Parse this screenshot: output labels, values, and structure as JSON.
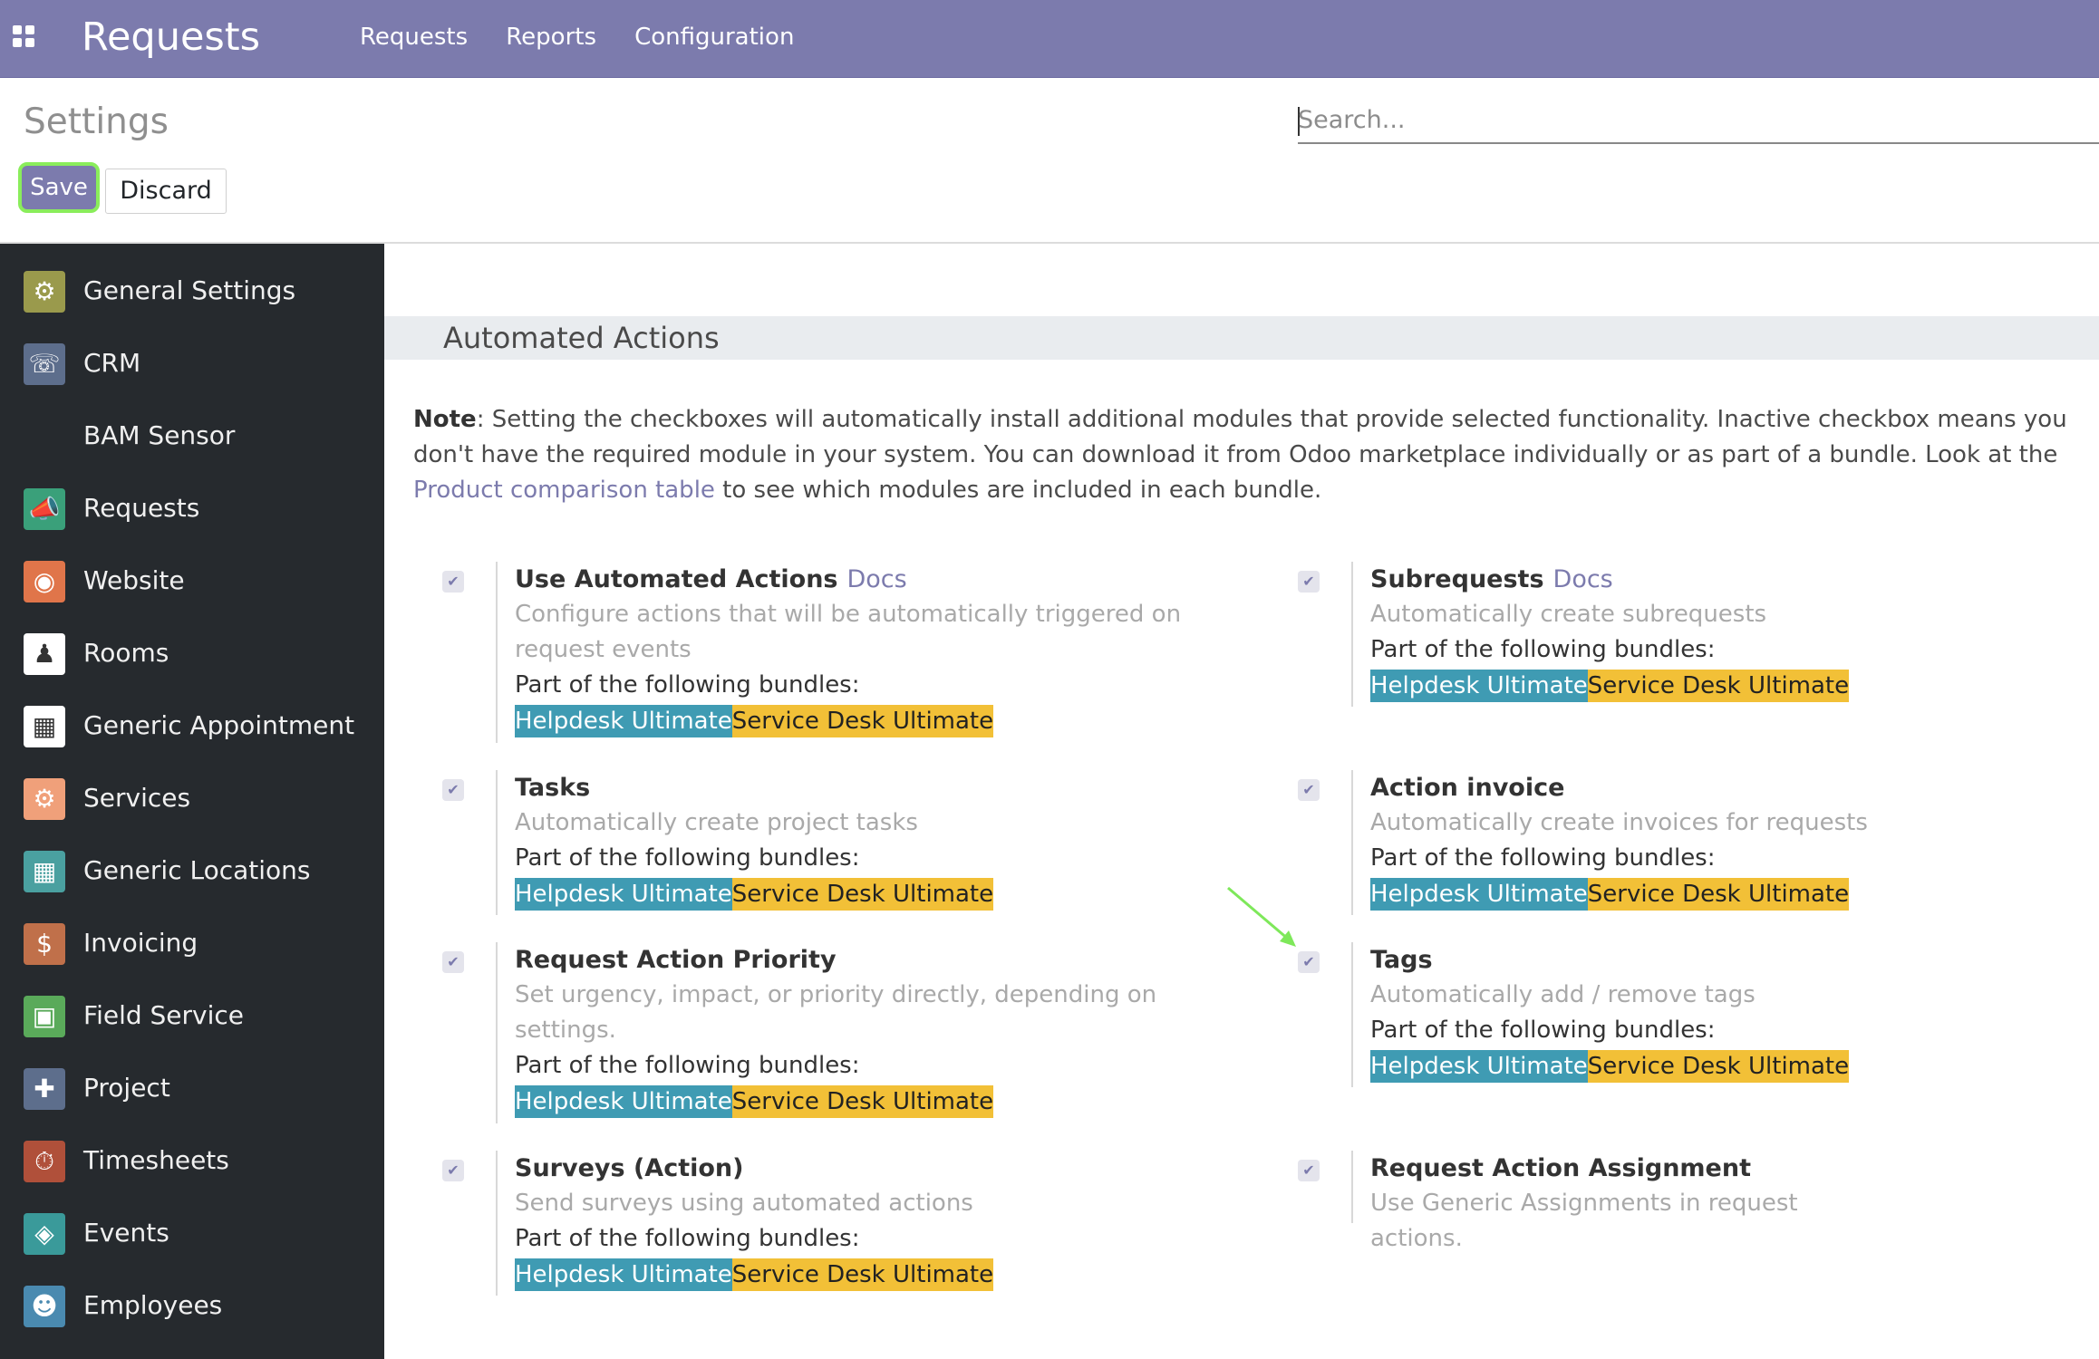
{
  "navbar": {
    "app_title": "Requests",
    "menu": [
      "Requests",
      "Reports",
      "Configuration"
    ],
    "color": "#7c7bad"
  },
  "control": {
    "breadcrumb": "Settings",
    "save_label": "Save",
    "discard_label": "Discard",
    "search_placeholder": "Search..."
  },
  "sidebar": {
    "items": [
      {
        "label": "General Settings",
        "icon": "gear-icon",
        "color": "#9a9a4c"
      },
      {
        "label": "CRM",
        "icon": "handshake-icon",
        "color": "#5d6e8c"
      },
      {
        "label": "BAM Sensor",
        "icon": "",
        "color": ""
      },
      {
        "label": "Requests",
        "icon": "megaphone-icon",
        "color": "#3aa07a"
      },
      {
        "label": "Website",
        "icon": "globe-icon",
        "color": "#e0754a"
      },
      {
        "label": "Rooms",
        "icon": "rooms-icon",
        "color": "#ffffff"
      },
      {
        "label": "Generic Appointment",
        "icon": "appointment-icon",
        "color": "#ffffff"
      },
      {
        "label": "Services",
        "icon": "services-icon",
        "color": "#f0a07a"
      },
      {
        "label": "Generic Locations",
        "icon": "locations-icon",
        "color": "#4aa0a0"
      },
      {
        "label": "Invoicing",
        "icon": "invoice-icon",
        "color": "#c0704a"
      },
      {
        "label": "Field Service",
        "icon": "field-service-icon",
        "color": "#5aaa5a"
      },
      {
        "label": "Project",
        "icon": "puzzle-icon",
        "color": "#5d6e8c"
      },
      {
        "label": "Timesheets",
        "icon": "stopwatch-icon",
        "color": "#b0503a"
      },
      {
        "label": "Events",
        "icon": "ticket-icon",
        "color": "#3a9a9a"
      },
      {
        "label": "Employees",
        "icon": "people-icon",
        "color": "#4a8ab0"
      }
    ]
  },
  "main": {
    "section_title": "Automated Actions",
    "note_bold": "Note",
    "note_text": ": Setting the checkboxes will automatically install additional modules that provide selected functionality. Inactive checkbox means you don't have the required module in your system. You can download it from Odoo marketplace individually or as part of a bundle. Look at the ",
    "note_link": "Product comparison table",
    "note_tail": " to see which modules are included in each bundle.",
    "bundles_label": "Part of the following bundles:",
    "bundle_helpdesk": "Helpdesk Ultimate",
    "bundle_servicedesk": "Service Desk Ultimate",
    "docs_label": "Docs",
    "settings": [
      {
        "title": "Use Automated Actions",
        "docs": true,
        "desc": "Configure actions that will be automatically triggered on request events",
        "bundles": true,
        "checked": true
      },
      {
        "title": "Subrequests",
        "docs": true,
        "desc": "Automatically create subrequests",
        "bundles": true,
        "checked": true
      },
      {
        "title": "Tasks",
        "docs": false,
        "desc": "Automatically create project tasks",
        "bundles": true,
        "checked": true
      },
      {
        "title": "Action invoice",
        "docs": false,
        "desc": "Automatically create invoices for requests",
        "bundles": true,
        "checked": true
      },
      {
        "title": "Request Action Priority",
        "docs": false,
        "desc": "Set urgency, impact, or priority directly, depending on settings.",
        "bundles": true,
        "checked": true
      },
      {
        "title": "Tags",
        "docs": false,
        "desc": "Automatically add / remove tags",
        "bundles": true,
        "checked": true
      },
      {
        "title": "Surveys (Action)",
        "docs": false,
        "desc": "Send surveys using automated actions",
        "bundles": true,
        "checked": true
      },
      {
        "title": "Request Action Assignment",
        "docs": false,
        "desc": "Use Generic Assignments in request actions.",
        "bundles": false,
        "checked": true
      }
    ]
  }
}
